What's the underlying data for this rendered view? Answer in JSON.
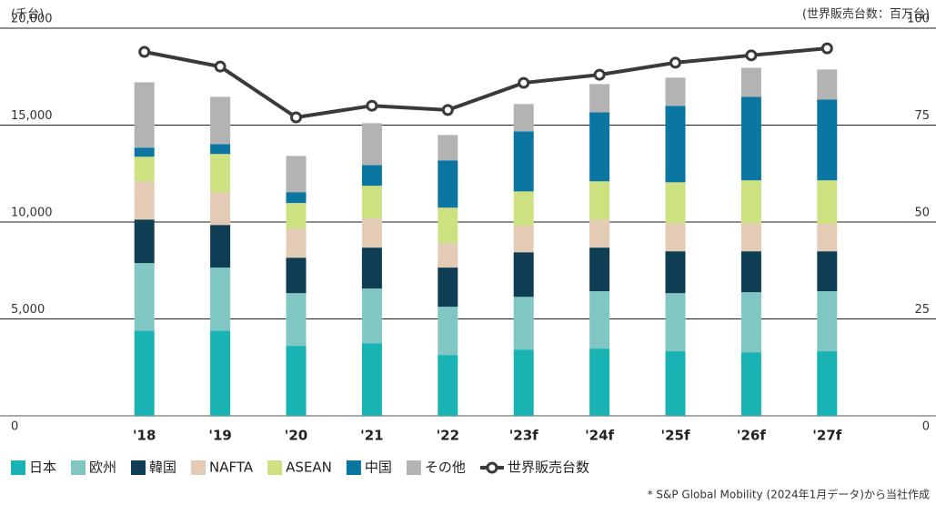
{
  "chart_data": {
    "type": "bar",
    "stacked": true,
    "y_label": "(千台)",
    "y2_label": "(世界販売台数：百万台)",
    "note": "* S&P Global Mobility (2024年1月データ)から当社作成",
    "categories": [
      "'18",
      "'19",
      "'20",
      "'21",
      "'22",
      "'23f",
      "'24f",
      "'25f",
      "'26f",
      "'27f"
    ],
    "ylim": [
      0,
      20000
    ],
    "yticks": [
      0,
      {
        "value": 5000,
        "label": "5,000"
      },
      {
        "value": 10000,
        "label": "10,000"
      },
      {
        "value": 15000,
        "label": "15,000"
      },
      {
        "value": 20000,
        "label": "20,000"
      }
    ],
    "y2lim": [
      0,
      100
    ],
    "y2ticks": [
      0,
      25,
      50,
      75,
      100
    ],
    "grid": true,
    "series": [
      {
        "name": "日本",
        "color": "#1ab3b3",
        "values": [
          4400,
          4400,
          3610,
          3750,
          3140,
          3420,
          3470,
          3330,
          3280,
          3330
        ]
      },
      {
        "name": "欧州",
        "color": "#80c6c3",
        "values": [
          3480,
          3250,
          2720,
          2820,
          2490,
          2720,
          2960,
          3000,
          3100,
          3100
        ]
      },
      {
        "name": "韓国",
        "color": "#0e3d54",
        "values": [
          2250,
          2200,
          1830,
          2110,
          2020,
          2300,
          2250,
          2160,
          2110,
          2060
        ]
      },
      {
        "name": "NAFTA",
        "color": "#e3cbb5",
        "values": [
          1970,
          1690,
          1500,
          1500,
          1260,
          1360,
          1450,
          1450,
          1450,
          1410
        ]
      },
      {
        "name": "ASEAN",
        "color": "#cde181",
        "values": [
          1270,
          1970,
          1320,
          1690,
          1830,
          1780,
          1970,
          2110,
          2210,
          2250
        ]
      },
      {
        "name": "中国",
        "color": "#0b76a2",
        "values": [
          470,
          510,
          560,
          1070,
          2440,
          3100,
          3560,
          3940,
          4310,
          4170
        ]
      },
      {
        "name": "その他",
        "color": "#b3b3b3",
        "values": [
          3370,
          2440,
          1870,
          2160,
          1310,
          1410,
          1460,
          1460,
          1500,
          1550
        ]
      },
      {
        "name": "世界販売台数",
        "color": "#3a3a3a",
        "type": "line",
        "axis": "y2",
        "values": [
          93.9,
          90.1,
          77.0,
          80.0,
          78.9,
          85.9,
          88.0,
          91.1,
          93.0,
          94.8
        ]
      }
    ]
  }
}
